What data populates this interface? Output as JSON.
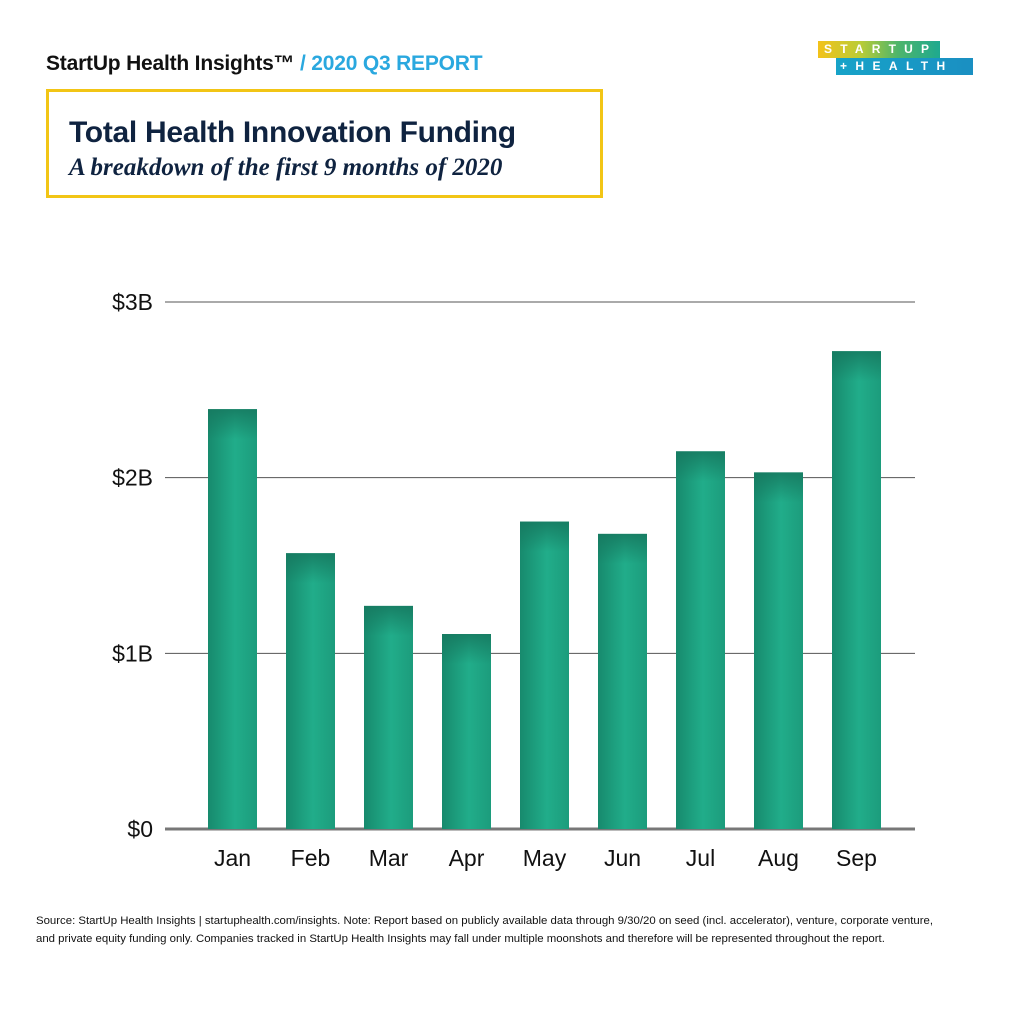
{
  "header": {
    "brand": "StartUp Health Insights™",
    "report": " / 2020 Q3 REPORT"
  },
  "logo": {
    "line1": "STARTUP",
    "line2": "+HEALTH"
  },
  "title": {
    "main": "Total Health Innovation Funding",
    "subtitle": "A breakdown of the first 9 months of 2020"
  },
  "colors": {
    "bar": "#1fa885",
    "bar_dark": "#17896c",
    "accent_yellow": "#f2c515",
    "report_blue": "#2aa8df",
    "title_navy": "#0f2340"
  },
  "chart_data": {
    "type": "bar",
    "title": "Total Health Innovation Funding",
    "subtitle": "A breakdown of the first 9 months of 2020",
    "xlabel": "",
    "ylabel": "",
    "categories": [
      "Jan",
      "Feb",
      "Mar",
      "Apr",
      "May",
      "Jun",
      "Jul",
      "Aug",
      "Sep"
    ],
    "values": [
      2.39,
      1.57,
      1.27,
      1.11,
      1.75,
      1.68,
      2.15,
      2.03,
      2.72
    ],
    "units": "USD billions",
    "ylim": [
      0,
      3
    ],
    "yticks": [
      0,
      1,
      2,
      3
    ],
    "ytick_labels": [
      "$0",
      "$1B",
      "$2B",
      "$3B"
    ],
    "grid": true,
    "legend": "none"
  },
  "footer": {
    "line1": "Source: StartUp Health Insights | startuphealth.com/insights. Note: Report based on publicly available data through 9/30/20 on seed (incl. accelerator), venture, corporate venture,",
    "line2": "and private equity funding only. Companies tracked in StartUp Health Insights may fall under multiple moonshots and therefore will be represented throughout the report."
  }
}
